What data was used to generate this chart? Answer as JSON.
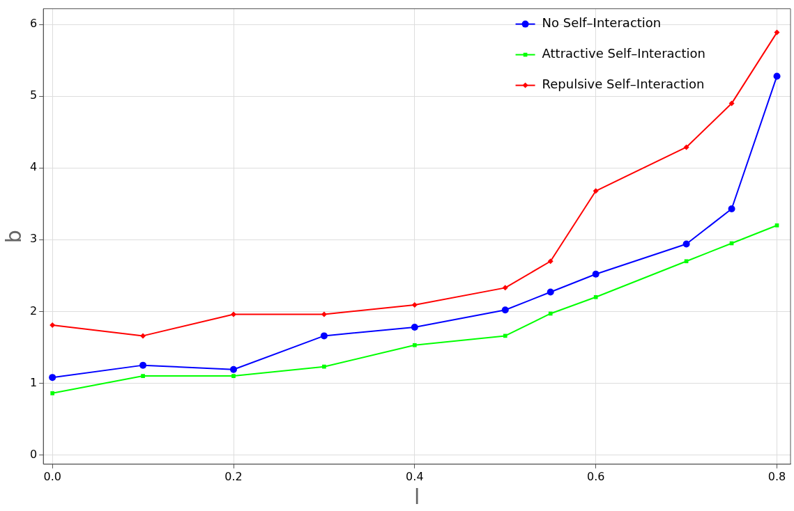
{
  "chart_data": {
    "type": "line",
    "xlabel": "l",
    "ylabel": "b",
    "x": [
      0,
      0.1,
      0.2,
      0.3,
      0.4,
      0.5,
      0.55,
      0.6,
      0.7,
      0.75,
      0.8
    ],
    "series": [
      {
        "name": "No Self–Interaction",
        "color": "#0000ff",
        "marker": "circle",
        "values": [
          1.08,
          1.25,
          1.19,
          1.66,
          1.78,
          2.02,
          2.27,
          2.52,
          2.94,
          3.43,
          5.28
        ]
      },
      {
        "name": "Attractive Self–Interaction",
        "color": "#00ff00",
        "marker": "square",
        "values": [
          0.86,
          1.1,
          1.1,
          1.23,
          1.53,
          1.66,
          1.97,
          2.2,
          2.7,
          2.95,
          3.2
        ]
      },
      {
        "name": "Repulsive Self–Interaction",
        "color": "#ff0000",
        "marker": "diamond",
        "values": [
          1.81,
          1.66,
          1.96,
          1.96,
          2.09,
          2.33,
          2.7,
          3.68,
          4.29,
          4.9,
          5.89
        ]
      }
    ],
    "xlim": [
      -0.01,
      0.815
    ],
    "ylim": [
      -0.13,
      6.22
    ],
    "xticks": [
      {
        "value": 0,
        "label": "0.0"
      },
      0.2,
      0.4,
      0.6,
      0.8
    ],
    "yticks": [
      0,
      1,
      2,
      3,
      4,
      5,
      6
    ],
    "grid": true,
    "legend": "top right",
    "line_style": "solid"
  }
}
